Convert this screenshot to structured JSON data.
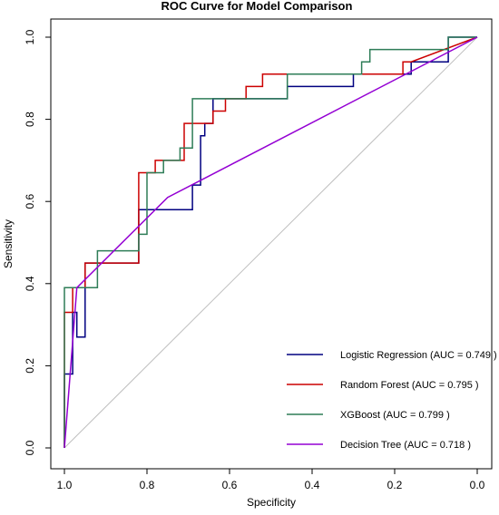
{
  "chart_data": {
    "type": "line",
    "title": "ROC Curve for Model Comparison",
    "xlabel": "Specificity",
    "ylabel": "Sensitivity",
    "xlim": [
      1.0,
      0.0
    ],
    "ylim": [
      0.0,
      1.0
    ],
    "x_reversed": true,
    "grid": false,
    "legend_position": "bottom-right",
    "x_ticks": [
      1.0,
      0.8,
      0.6,
      0.4,
      0.2,
      0.0
    ],
    "x_tick_labels": [
      "1.0",
      "0.8",
      "0.6",
      "0.4",
      "0.2",
      "0.0"
    ],
    "y_ticks": [
      0.0,
      0.2,
      0.4,
      0.6,
      0.8,
      1.0
    ],
    "y_tick_labels": [
      "0.0",
      "0.2",
      "0.4",
      "0.6",
      "0.8",
      "1.0"
    ],
    "reference_line": {
      "from": [
        1.0,
        0.0
      ],
      "to": [
        0.0,
        1.0
      ],
      "color": "#bfbfbf"
    },
    "series": [
      {
        "name": "Logistic Regression",
        "legend": "Logistic Regression (AUC = 0.749 )",
        "color": "#000080",
        "specificity": [
          1.0,
          1.0,
          0.98,
          0.98,
          0.97,
          0.97,
          0.95,
          0.95,
          0.92,
          0.92,
          0.82,
          0.82,
          0.69,
          0.69,
          0.67,
          0.67,
          0.66,
          0.66,
          0.64,
          0.64,
          0.54,
          0.54,
          0.46,
          0.46,
          0.42,
          0.42,
          0.3,
          0.3,
          0.16,
          0.16,
          0.07,
          0.07,
          0.0
        ],
        "sensitivity": [
          0.0,
          0.18,
          0.18,
          0.33,
          0.33,
          0.27,
          0.27,
          0.45,
          0.45,
          0.45,
          0.45,
          0.58,
          0.58,
          0.64,
          0.64,
          0.76,
          0.76,
          0.79,
          0.79,
          0.85,
          0.85,
          0.85,
          0.85,
          0.88,
          0.88,
          0.88,
          0.88,
          0.91,
          0.91,
          0.94,
          0.94,
          1.0,
          1.0
        ]
      },
      {
        "name": "Random Forest",
        "legend": "Random Forest (AUC = 0.795 )",
        "color": "#cc0000",
        "specificity": [
          1.0,
          1.0,
          0.98,
          0.98,
          0.95,
          0.95,
          0.82,
          0.82,
          0.78,
          0.78,
          0.71,
          0.71,
          0.67,
          0.67,
          0.64,
          0.64,
          0.61,
          0.61,
          0.56,
          0.56,
          0.52,
          0.52,
          0.47,
          0.47,
          0.18,
          0.18,
          0.16,
          0.16,
          0.0
        ],
        "sensitivity": [
          0.0,
          0.33,
          0.33,
          0.39,
          0.39,
          0.45,
          0.45,
          0.67,
          0.67,
          0.7,
          0.7,
          0.79,
          0.79,
          0.79,
          0.79,
          0.82,
          0.82,
          0.85,
          0.85,
          0.88,
          0.88,
          0.91,
          0.91,
          0.91,
          0.91,
          0.94,
          0.94,
          0.94,
          1.0
        ]
      },
      {
        "name": "XGBoost",
        "legend": "XGBoost (AUC = 0.799 )",
        "color": "#2e7d57",
        "specificity": [
          1.0,
          1.0,
          0.97,
          0.97,
          0.93,
          0.93,
          0.92,
          0.92,
          0.82,
          0.82,
          0.8,
          0.8,
          0.76,
          0.76,
          0.72,
          0.72,
          0.69,
          0.69,
          0.49,
          0.49,
          0.46,
          0.46,
          0.28,
          0.28,
          0.26,
          0.26,
          0.07,
          0.07,
          0.0
        ],
        "sensitivity": [
          0.0,
          0.39,
          0.39,
          0.39,
          0.39,
          0.39,
          0.39,
          0.48,
          0.48,
          0.52,
          0.52,
          0.67,
          0.67,
          0.7,
          0.7,
          0.73,
          0.73,
          0.85,
          0.85,
          0.85,
          0.85,
          0.91,
          0.91,
          0.94,
          0.94,
          0.97,
          0.97,
          1.0,
          1.0
        ]
      },
      {
        "name": "Decision Tree",
        "legend": "Decision Tree (AUC = 0.718 )",
        "color": "#9400d3",
        "specificity": [
          1.0,
          0.97,
          0.75,
          0.0
        ],
        "sensitivity": [
          0.0,
          0.39,
          0.61,
          1.0
        ]
      }
    ]
  }
}
